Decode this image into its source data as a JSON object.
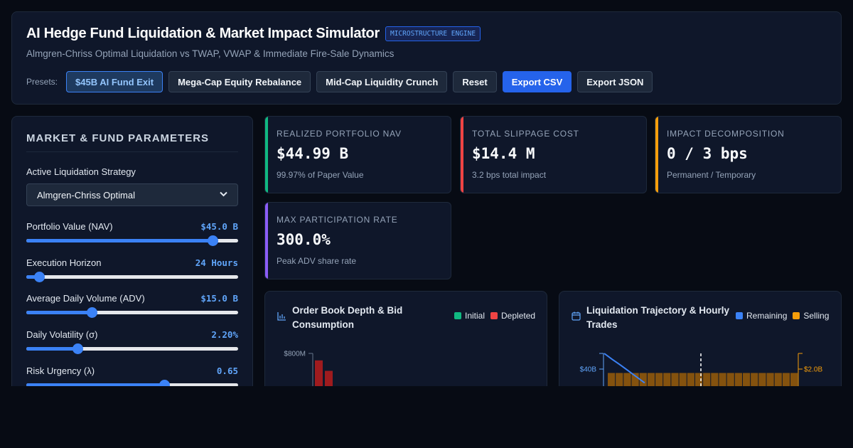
{
  "header": {
    "title": "AI Hedge Fund Liquidation & Market Impact Simulator",
    "badge": "MICROSTRUCTURE ENGINE",
    "subtitle": "Almgren-Chriss Optimal Liquidation vs TWAP, VWAP & Immediate Fire-Sale Dynamics",
    "presets_label": "Presets:",
    "buttons": {
      "preset_ai_fund": "$45B AI Fund Exit",
      "preset_mega_cap": "Mega-Cap Equity Rebalance",
      "preset_mid_cap": "Mid-Cap Liquidity Crunch",
      "reset": "Reset",
      "export_csv": "Export CSV",
      "export_json": "Export JSON"
    }
  },
  "sidebar": {
    "title": "MARKET & FUND PARAMETERS",
    "strategy_label": "Active Liquidation Strategy",
    "strategy_value": "Almgren-Chriss Optimal",
    "params": [
      {
        "label": "Portfolio Value (NAV)",
        "value": "$45.0 B",
        "level": 0.88
      },
      {
        "label": "Execution Horizon",
        "value": "24 Hours",
        "level": 0.06
      },
      {
        "label": "Average Daily Volume (ADV)",
        "value": "$15.0 B",
        "level": 0.31
      },
      {
        "label": "Daily Volatility (σ)",
        "value": "2.20%",
        "level": 0.24
      },
      {
        "label": "Risk Urgency (λ)",
        "value": "0.65",
        "level": 0.65
      }
    ]
  },
  "kpis": [
    {
      "label": "REALIZED PORTFOLIO NAV",
      "value": "$44.99 B",
      "sub": "99.97% of Paper Value",
      "color": "#10b981"
    },
    {
      "label": "TOTAL SLIPPAGE COST",
      "value": "$14.4 M",
      "sub": "3.2 bps total impact",
      "color": "#ef4444"
    },
    {
      "label": "IMPACT DECOMPOSITION",
      "value": "0 / 3 bps",
      "sub": "Permanent / Temporary",
      "color": "#f59e0b"
    },
    {
      "label": "MAX PARTICIPATION RATE",
      "value": "300.0%",
      "sub": "Peak ADV share rate",
      "color": "#8b5cf6"
    }
  ],
  "order_book_chart": {
    "title_line1": "Order Book Depth & Bid",
    "title_line2": "Consumption",
    "icon": "bar-chart-icon",
    "legend": [
      {
        "name": "Initial",
        "color": "#10b981"
      },
      {
        "name": "Depleted",
        "color": "#ef4444"
      }
    ]
  },
  "trajectory_chart": {
    "title_line1": "Liquidation Trajectory & Hourly",
    "title_line2": "Trades",
    "icon": "calendar-icon",
    "legend": [
      {
        "name": "Remaining",
        "color": "#3b82f6"
      },
      {
        "name": "Selling",
        "color": "#f59e0b"
      }
    ]
  },
  "chart_data": [
    {
      "type": "bar",
      "title": "Order Book Depth & Bid Consumption",
      "y_tick_labels": [
        "$800M"
      ],
      "series": [
        {
          "name": "Depleted",
          "values": [
            720,
            600
          ]
        }
      ]
    },
    {
      "type": "bar",
      "title": "Liquidation Trajectory & Hourly Trades",
      "y_tick_labels_left": [
        "$40B"
      ],
      "y_tick_labels_right": [
        "$2.0B"
      ],
      "series": [
        {
          "name": "Remaining",
          "type": "line",
          "values": [
            45.0,
            43.1,
            41.3,
            39.4,
            37.5,
            35.6
          ]
        },
        {
          "name": "Selling",
          "values": [
            1.875,
            1.875,
            1.875,
            1.875,
            1.875,
            1.875,
            1.875,
            1.875,
            1.875,
            1.875,
            1.875,
            1.875,
            1.875,
            1.875,
            1.875,
            1.875,
            1.875,
            1.875,
            1.875,
            1.875,
            1.875,
            1.875,
            1.875,
            1.875
          ]
        }
      ]
    }
  ]
}
